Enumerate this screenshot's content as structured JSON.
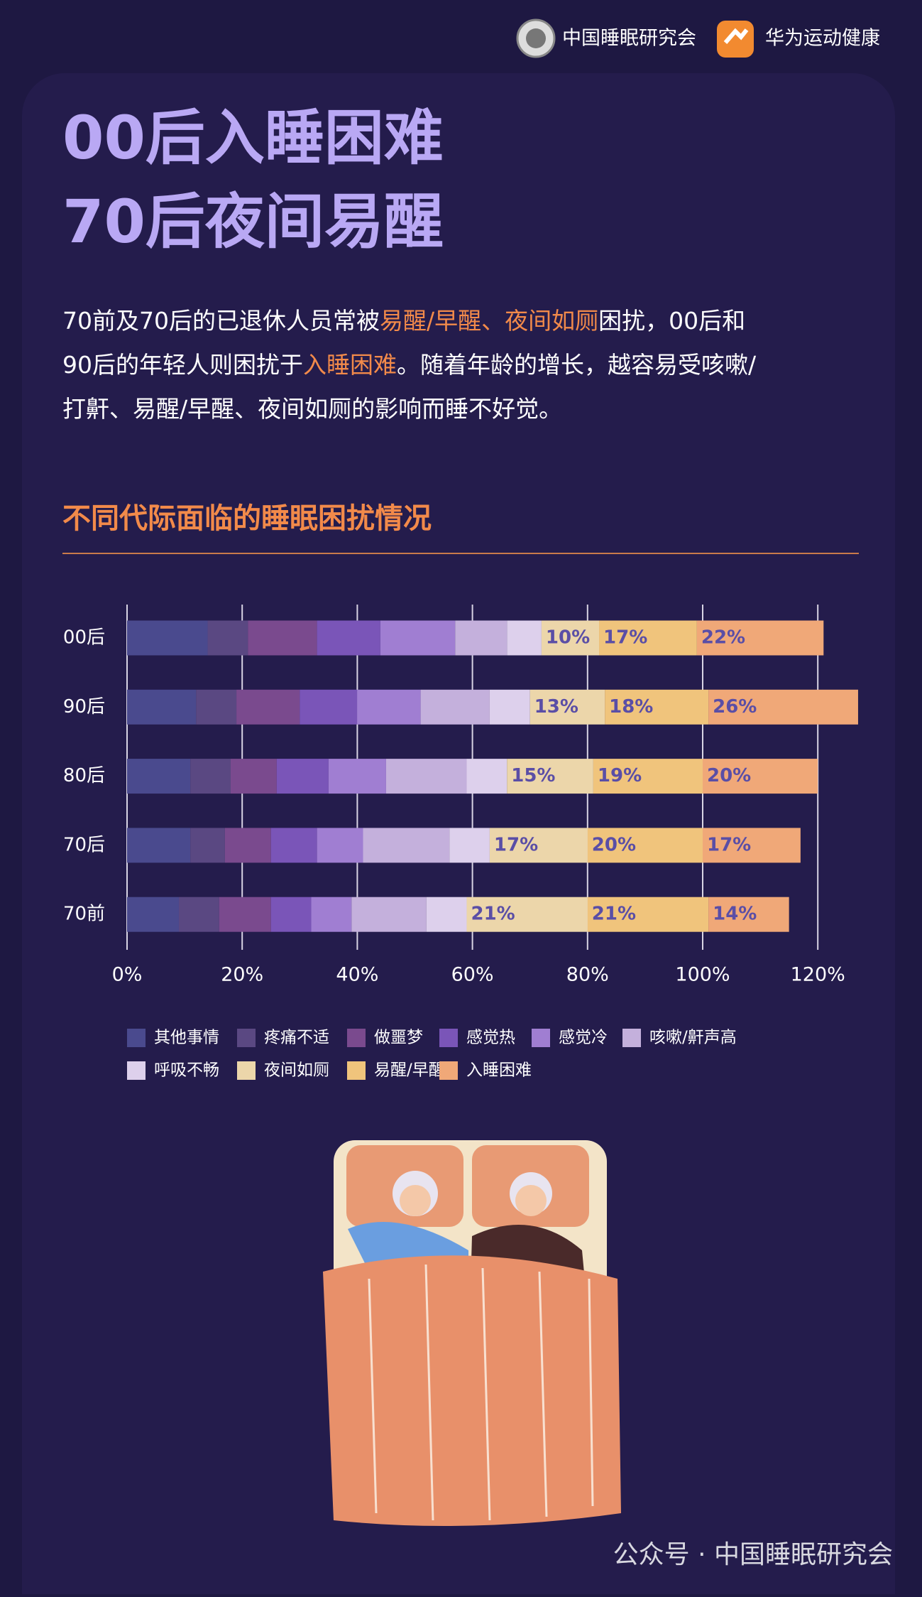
{
  "header": {
    "org1": "中国睡眠研究会",
    "org2": "华为运动健康"
  },
  "title_lines": [
    "00后入睡困难",
    "70后夜间易醒"
  ],
  "paragraph_lines": [
    [
      {
        "text": "70前及70后的已退休人员常被",
        "highlight": false
      },
      {
        "text": "易醒/早醒、夜间如厕",
        "highlight": true
      },
      {
        "text": "困扰，00后和",
        "highlight": false
      }
    ],
    [
      {
        "text": "90后的年轻人则困扰于",
        "highlight": false
      },
      {
        "text": "入睡困难",
        "highlight": true
      },
      {
        "text": "。随着年龄的增长，越容易受咳嗽/",
        "highlight": false
      }
    ],
    [
      {
        "text": "打鼾、易醒/早醒、夜间如厕的影响而睡不好觉。",
        "highlight": false
      }
    ]
  ],
  "chart_data": {
    "type": "stacked-bar-horizontal",
    "title": "不同代际面临的睡眠困扰情况",
    "categories": [
      "00后",
      "90后",
      "80后",
      "70后",
      "70前"
    ],
    "series": [
      {
        "name": "其他事情",
        "color": "#4a4a8e",
        "values": [
          14,
          12,
          11,
          11,
          9
        ]
      },
      {
        "name": "疼痛不适",
        "color": "#5a4882",
        "values": [
          7,
          7,
          7,
          6,
          7
        ]
      },
      {
        "name": "做噩梦",
        "color": "#7a4a8e",
        "values": [
          12,
          11,
          8,
          8,
          9
        ]
      },
      {
        "name": "感觉热",
        "color": "#7a55b8",
        "values": [
          11,
          10,
          9,
          8,
          7
        ]
      },
      {
        "name": "感觉冷",
        "color": "#a07ed2",
        "values": [
          13,
          11,
          10,
          8,
          7
        ]
      },
      {
        "name": "咳嗽/鼾声高",
        "color": "#c4b0dc",
        "values": [
          9,
          12,
          14,
          15,
          13
        ]
      },
      {
        "name": "呼吸不畅",
        "color": "#ddd0ec",
        "values": [
          6,
          7,
          7,
          7,
          7
        ]
      },
      {
        "name": "夜间如厕",
        "color": "#ecd6aa",
        "values": [
          10,
          13,
          15,
          17,
          21
        ],
        "value_labels": [
          "10%",
          "13%",
          "15%",
          "17%",
          "21%"
        ]
      },
      {
        "name": "易醒/早醒",
        "color": "#f0c47c",
        "values": [
          17,
          18,
          19,
          20,
          21
        ],
        "value_labels": [
          "17%",
          "18%",
          "19%",
          "20%",
          "21%"
        ]
      },
      {
        "name": "入睡困难",
        "color": "#f0a878",
        "values": [
          22,
          26,
          20,
          17,
          14
        ],
        "value_labels": [
          "22%",
          "26%",
          "20%",
          "17%",
          "14%"
        ]
      }
    ],
    "xlim": [
      0,
      120
    ],
    "xticks": [
      {
        "value": 0,
        "label": "0%"
      },
      {
        "value": 20,
        "label": "20%"
      },
      {
        "value": 40,
        "label": "40%"
      },
      {
        "value": 60,
        "label": "60%"
      },
      {
        "value": 80,
        "label": "80%"
      },
      {
        "value": 100,
        "label": "100%"
      },
      {
        "value": 120,
        "label": "120%"
      }
    ],
    "grid": true
  },
  "watermark": "公众号 · 中国睡眠研究会"
}
